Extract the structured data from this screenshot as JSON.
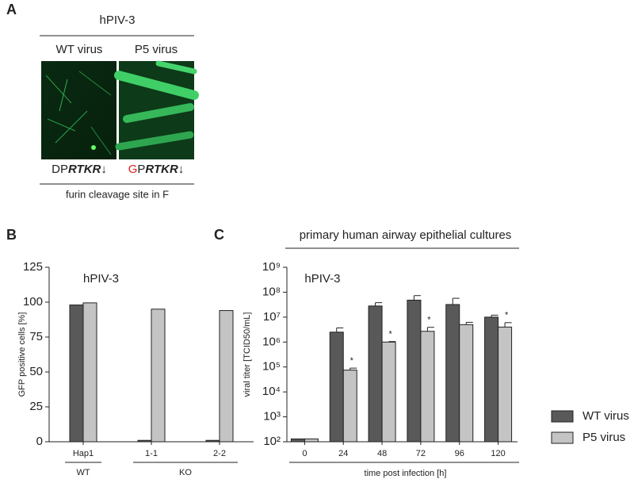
{
  "panel_labels": [
    "A",
    "B",
    "C"
  ],
  "panel_a": {
    "title": "hPIV-3",
    "columns": [
      "WT virus",
      "P5 virus"
    ],
    "sequences": [
      [
        "D",
        "P",
        "RTKR",
        "↓"
      ],
      [
        "G",
        "P",
        "RTKR",
        "↓"
      ]
    ],
    "mutation_color": "#e02020",
    "caption": "furin cleavage site in F"
  },
  "chart_data": [
    {
      "type": "bar",
      "annotation": "hPIV-3",
      "y_label": "GFP positive cells [%]",
      "categories": [
        "Hap1",
        "1-1",
        "2-2"
      ],
      "groups": [
        {
          "label": "WT",
          "from": 0,
          "to": 0
        },
        {
          "label": "KO",
          "from": 1,
          "to": 2
        }
      ],
      "series": [
        {
          "color": "#595959",
          "values": [
            98,
            1,
            1
          ]
        },
        {
          "color": "#c4c4c4",
          "values": [
            99.5,
            95,
            94
          ]
        }
      ],
      "ylim": [
        0,
        125
      ],
      "yticks": [
        0,
        25,
        50,
        75,
        100,
        125
      ]
    },
    {
      "type": "bar",
      "title": "primary human airway epithelial cultures",
      "annotation": "hPIV-3",
      "y_label": "viral titer [TCID50/mL]",
      "x_label": "time post infection [h]",
      "categories": [
        "0",
        "24",
        "48",
        "72",
        "96",
        "120"
      ],
      "log_scale": true,
      "legend": "right",
      "series": [
        {
          "name": "WT virus",
          "color": "#595959",
          "values": [
            130,
            2500000,
            28000000,
            48000000,
            32000000,
            10000000
          ],
          "errors": [
            null,
            1200000,
            10000000,
            25000000,
            25000000,
            2000000
          ]
        },
        {
          "name": "P5 virus",
          "color": "#c4c4c4",
          "values": [
            130,
            75000,
            1000000,
            2700000,
            5000000,
            4000000
          ],
          "errors": [
            null,
            15000,
            50000,
            1200000,
            1200000,
            2000000
          ],
          "significance": [
            null,
            "*",
            "*",
            "*",
            null,
            "*"
          ]
        }
      ],
      "ylim": [
        100,
        1000000000
      ],
      "yticks": [
        {
          "value": 100,
          "label": "10²"
        },
        {
          "value": 1000,
          "label": "10³"
        },
        {
          "value": 10000,
          "label": "10⁴"
        },
        {
          "value": 100000,
          "label": "10⁵"
        },
        {
          "value": 1000000,
          "label": "10⁶"
        },
        {
          "value": 10000000,
          "label": "10⁷"
        },
        {
          "value": 100000000,
          "label": "10⁸"
        },
        {
          "value": 1000000000,
          "label": "10⁹"
        }
      ]
    }
  ]
}
